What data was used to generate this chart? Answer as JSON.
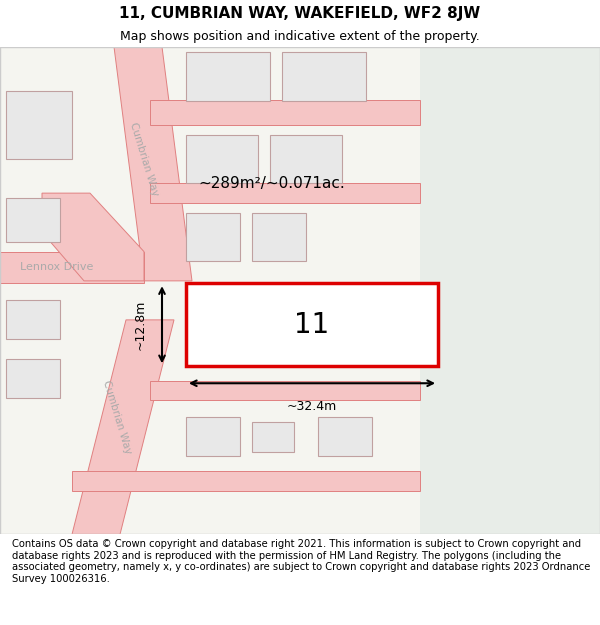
{
  "title": "11, CUMBRIAN WAY, WAKEFIELD, WF2 8JW",
  "subtitle": "Map shows position and indicative extent of the property.",
  "footer": "Contains OS data © Crown copyright and database right 2021. This information is subject to Crown copyright and database rights 2023 and is reproduced with the permission of HM Land Registry. The polygons (including the associated geometry, namely x, y co-ordinates) are subject to Crown copyright and database rights 2023 Ordnance Survey 100026316.",
  "map_bg": "#f5f5f0",
  "road_color": "#f5c5c5",
  "road_border_color": "#e08080",
  "building_fill": "#e8e8e8",
  "building_edge": "#c0a0a0",
  "highlight_fill": "#ffffff",
  "highlight_edge": "#dd0000",
  "green_bg": "#e8ede8",
  "title_fontsize": 11,
  "subtitle_fontsize": 9,
  "footer_fontsize": 7.2,
  "property_label": "11",
  "area_label": "~289m²/~0.071ac.",
  "width_label": "~32.4m",
  "height_label": "~12.8m"
}
